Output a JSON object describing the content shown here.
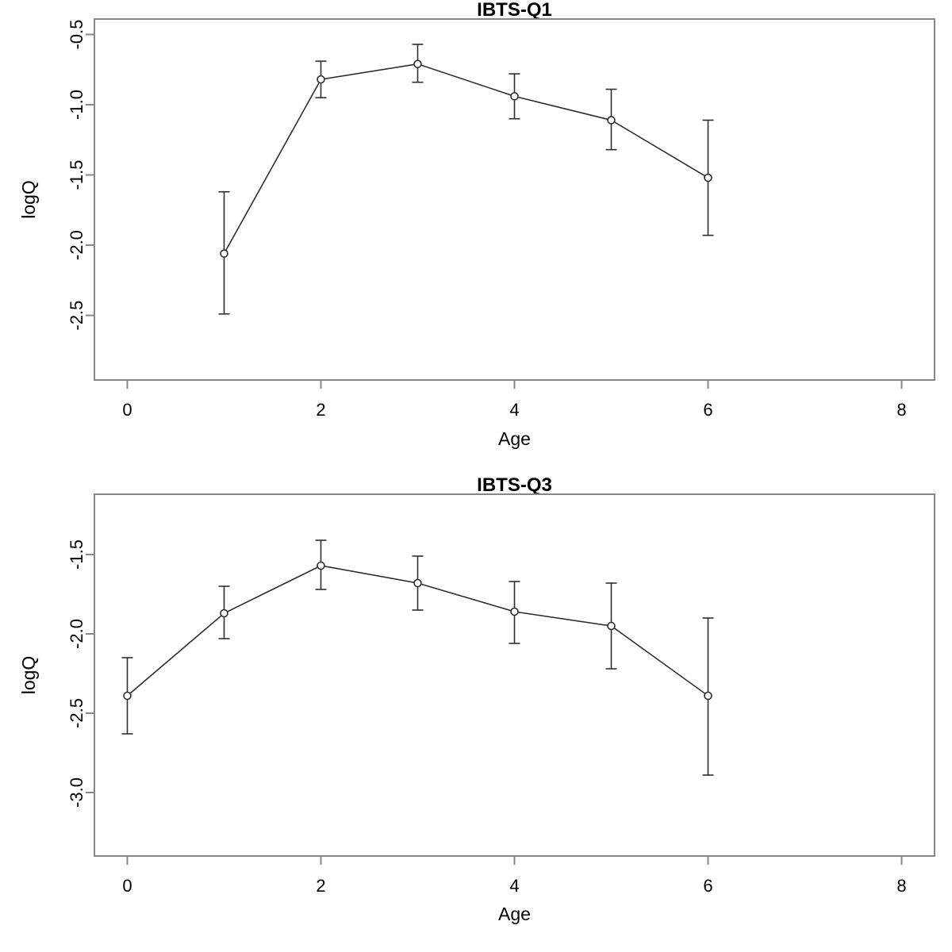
{
  "figure": {
    "background": "#ffffff",
    "data_color": "#2e2e2e",
    "box_color": "#878787",
    "text_color": "#000000",
    "marker": "open-circle"
  },
  "chart_data": [
    {
      "type": "line",
      "title": "IBTS-Q1",
      "xlabel": "Age",
      "ylabel": "logQ",
      "grid": false,
      "legend": "none",
      "error_bars": true,
      "x": [
        1,
        2,
        3,
        4,
        5,
        6
      ],
      "y": [
        -2.06,
        -0.82,
        -0.71,
        -0.94,
        -1.11,
        -1.52
      ],
      "ci_upper": [
        -1.62,
        -0.69,
        -0.57,
        -0.78,
        -0.89,
        -1.11
      ],
      "ci_lower": [
        -2.49,
        -0.95,
        -0.84,
        -1.1,
        -1.32,
        -1.93
      ],
      "xlim": [
        -0.34,
        8.34
      ],
      "ylim": [
        -2.96,
        -0.39
      ],
      "xticks": [
        0,
        2,
        4,
        6,
        8
      ],
      "xtick_labels": [
        "0",
        "2",
        "4",
        "6",
        "8"
      ],
      "yticks": [
        -0.5,
        -1.0,
        -1.5,
        -2.0,
        -2.5
      ],
      "ytick_labels": [
        "-0.5",
        "-1.0",
        "-1.5",
        "-2.0",
        "-2.5"
      ]
    },
    {
      "type": "line",
      "title": "IBTS-Q3",
      "xlabel": "Age",
      "ylabel": "logQ",
      "grid": false,
      "legend": "none",
      "error_bars": true,
      "x": [
        0,
        1,
        2,
        3,
        4,
        5,
        6
      ],
      "y": [
        -2.39,
        -1.87,
        -1.57,
        -1.68,
        -1.86,
        -1.95,
        -2.39
      ],
      "ci_upper": [
        -2.15,
        -1.7,
        -1.41,
        -1.51,
        -1.67,
        -1.68,
        -1.9
      ],
      "ci_lower": [
        -2.63,
        -2.03,
        -1.72,
        -1.85,
        -2.06,
        -2.22,
        -2.89
      ],
      "xlim": [
        -0.34,
        8.34
      ],
      "ylim": [
        -3.4,
        -1.12
      ],
      "xticks": [
        0,
        2,
        4,
        6,
        8
      ],
      "xtick_labels": [
        "0",
        "2",
        "4",
        "6",
        "8"
      ],
      "yticks": [
        -1.5,
        -2.0,
        -2.5,
        -3.0
      ],
      "ytick_labels": [
        "-1.5",
        "-2.0",
        "-2.5",
        "-3.0"
      ]
    }
  ]
}
